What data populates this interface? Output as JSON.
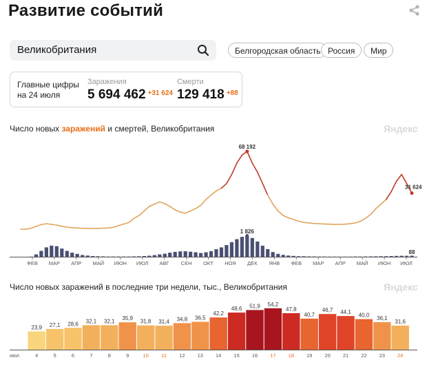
{
  "header": {
    "title": "Развитие событий"
  },
  "search": {
    "value": "Великобритания"
  },
  "chips": [
    "Белгородская область",
    "Россия",
    "Мир"
  ],
  "summary": {
    "label_line1": "Главные цифры",
    "label_line2": "на 24 июля",
    "cases_label": "Заражения",
    "cases_value": "5 694 462",
    "cases_increase": "+31 624",
    "deaths_label": "Смерти",
    "deaths_value": "129 418",
    "deaths_increase": "+88"
  },
  "chart1": {
    "title_prefix": "Число новых ",
    "title_highlight": "заражений",
    "title_suffix": " и смертей, Великобритания",
    "brand": "Яндекс"
  },
  "chart2": {
    "title": "Число новых заражений в последние три недели, тыс., Великобритания",
    "brand": "Яндекс"
  },
  "colors": {
    "cases_line": "#e0a45c",
    "cases_peak": "#c0392b",
    "deaths_bars": "#4a4f72",
    "accent": "#e8701a"
  },
  "chart_data": [
    {
      "type": "line",
      "months": [
        "ФЕВ",
        "МАР",
        "АПР",
        "МАЙ",
        "ИЮН",
        "ИЮЛ",
        "АВГ",
        "СЕН",
        "ОКТ",
        "НОЯ",
        "ДЕК",
        "ЯНВ",
        "ФЕВ",
        "МАР",
        "АПР",
        "МАЙ",
        "ИЮН",
        "ИЮЛ"
      ],
      "series": [
        {
          "values": [
            0,
            0,
            800,
            2500,
            4000,
            4800,
            4200,
            3600,
            2600,
            1800,
            1300,
            1000,
            800,
            700,
            600,
            700,
            850,
            1100,
            1700,
            3000,
            4500,
            5800,
            9500,
            12000,
            16000,
            20000,
            22000,
            24000,
            22500,
            20000,
            17000,
            15000,
            14000,
            16000,
            18000,
            21000,
            26000,
            30000,
            33500,
            36000,
            40000,
            48000,
            58000,
            65000,
            68192,
            58000,
            50000,
            40000,
            30000,
            22000,
            16000,
            12000,
            10000,
            8500,
            7000,
            6000,
            5500,
            5000,
            4800,
            4600,
            4400,
            4300,
            4200,
            4400,
            4800,
            5500,
            7000,
            9500,
            13000,
            18000,
            22000,
            26000,
            33000,
            42000,
            48000,
            40000,
            31624
          ]
        },
        {
          "values": [
            0,
            0,
            10,
            200,
            500,
            800,
            950,
            900,
            700,
            500,
            350,
            250,
            150,
            100,
            60,
            40,
            30,
            20,
            20,
            20,
            20,
            20,
            30,
            40,
            60,
            90,
            140,
            200,
            260,
            350,
            420,
            460,
            470,
            430,
            380,
            320,
            380,
            480,
            650,
            800,
            1000,
            1250,
            1500,
            1700,
            1826,
            1600,
            1300,
            950,
            650,
            400,
            250,
            160,
            100,
            70,
            50,
            40,
            30,
            25,
            20,
            15,
            12,
            10,
            10,
            10,
            12,
            15,
            20,
            25,
            30,
            35,
            40,
            50,
            60,
            70,
            80,
            85,
            88
          ]
        }
      ],
      "annotations": [
        "68 192",
        "1 826",
        "31 624",
        "88"
      ]
    },
    {
      "type": "bar",
      "categories": [
        "4",
        "5",
        "6",
        "7",
        "8",
        "9",
        "10",
        "11",
        "12",
        "13",
        "14",
        "15",
        "16",
        "17",
        "18",
        "19",
        "20",
        "21",
        "22",
        "23",
        "24"
      ],
      "month_label": "июл",
      "series": [
        {
          "values": [
            23.9,
            27.1,
            28.6,
            32.1,
            32.1,
            35.9,
            31.8,
            31.4,
            34.8,
            36.5,
            42.2,
            48.6,
            51.9,
            54.2,
            47.8,
            40.7,
            46.7,
            44.1,
            40.0,
            36.1,
            31.6
          ]
        }
      ],
      "value_labels": [
        "23,9",
        "27,1",
        "28,6",
        "32,1",
        "32,1",
        "35,9",
        "31,8",
        "31,4",
        "34,8",
        "36,5",
        "42,2",
        "48,6",
        "51,9",
        "54,2",
        "47,8",
        "40,7",
        "46,7",
        "44,1",
        "40,0",
        "36,1",
        "31,6"
      ],
      "weekend_categories": [
        "10",
        "11",
        "17",
        "18",
        "24"
      ],
      "ylim": [
        0,
        55
      ]
    }
  ]
}
